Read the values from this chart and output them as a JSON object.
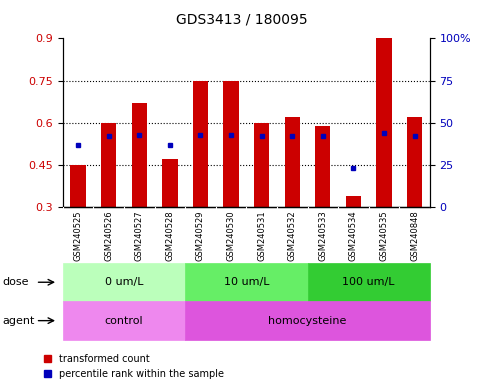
{
  "title": "GDS3413 / 180095",
  "samples": [
    "GSM240525",
    "GSM240526",
    "GSM240527",
    "GSM240528",
    "GSM240529",
    "GSM240530",
    "GSM240531",
    "GSM240532",
    "GSM240533",
    "GSM240534",
    "GSM240535",
    "GSM240848"
  ],
  "red_values": [
    0.45,
    0.6,
    0.67,
    0.47,
    0.75,
    0.75,
    0.6,
    0.62,
    0.59,
    0.34,
    0.9,
    0.62
  ],
  "blue_values_pct": [
    37,
    42,
    43,
    37,
    43,
    43,
    42,
    42,
    42,
    23,
    44,
    42
  ],
  "ylim_left": [
    0.3,
    0.9
  ],
  "ylim_right": [
    0,
    100
  ],
  "yticks_left": [
    0.3,
    0.45,
    0.6,
    0.75,
    0.9
  ],
  "yticks_right": [
    0,
    25,
    50,
    75,
    100
  ],
  "red_color": "#cc0000",
  "blue_color": "#0000bb",
  "dose_groups": [
    {
      "label": "0 um/L",
      "start": 0,
      "end": 3,
      "color": "#bbffbb"
    },
    {
      "label": "10 um/L",
      "start": 4,
      "end": 7,
      "color": "#66ee66"
    },
    {
      "label": "100 um/L",
      "start": 8,
      "end": 11,
      "color": "#33cc33"
    }
  ],
  "agent_groups": [
    {
      "label": "control",
      "start": 0,
      "end": 3,
      "color": "#ee88ee"
    },
    {
      "label": "homocysteine",
      "start": 4,
      "end": 11,
      "color": "#dd55dd"
    }
  ],
  "dose_label": "dose",
  "agent_label": "agent",
  "legend_red": "transformed count",
  "legend_blue": "percentile rank within the sample",
  "bar_width": 0.5,
  "tick_label_color_left": "#cc0000",
  "tick_label_color_right": "#0000bb",
  "background_color": "#ffffff",
  "xticklabel_bg": "#cccccc"
}
